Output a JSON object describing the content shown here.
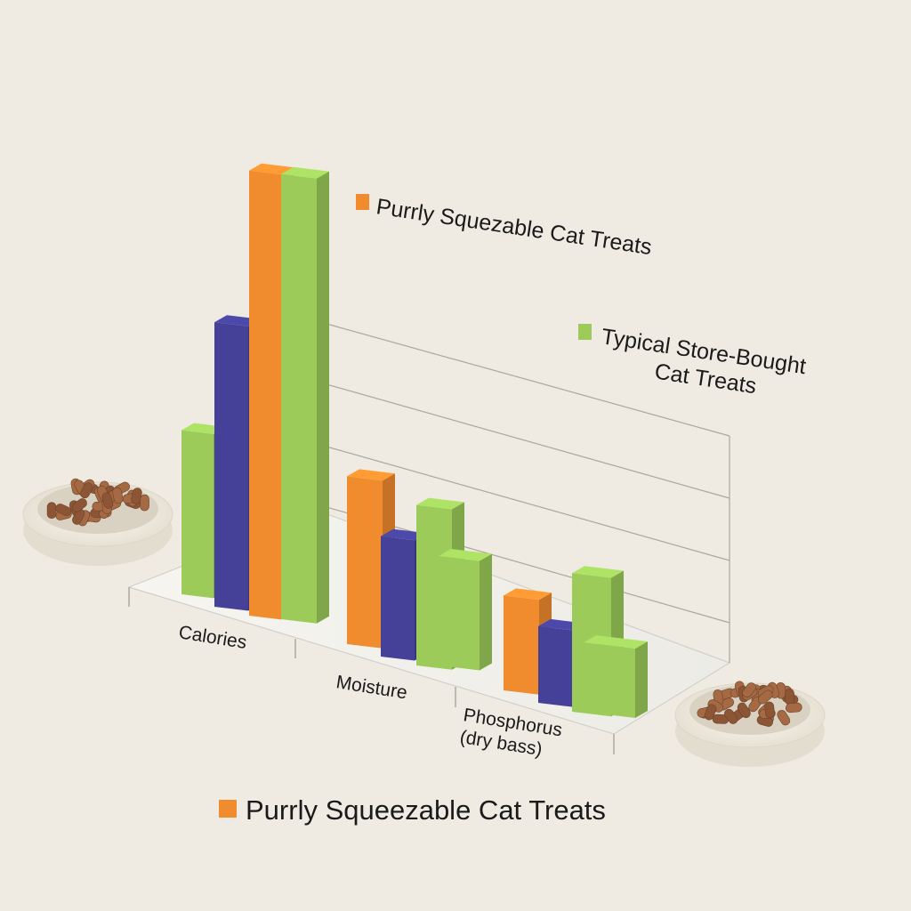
{
  "chart_data": {
    "type": "bar",
    "title": "",
    "xlabel": "",
    "ylabel": "",
    "categories": [
      "Calories",
      "Moisture",
      "Phosphorus\n(dry bass)"
    ],
    "series": [
      {
        "name": "Typical Store-Bought\nCat Treats",
        "color": "#9ccb5a",
        "values": [
          45,
          0,
          0
        ]
      },
      {
        "name": "",
        "color": "#454199",
        "values": [
          78,
          33,
          21
        ]
      },
      {
        "name": "Purrly Squezable Cat Treats",
        "color": "#f08b2e",
        "values": [
          122,
          46,
          26
        ]
      },
      {
        "name": "",
        "color": "#9ccb5a",
        "values": [
          122,
          44,
          38
        ]
      },
      {
        "name": "",
        "color": "#9ccb5a",
        "values": [
          0,
          30,
          19
        ]
      }
    ],
    "grid": true,
    "legend_position": "top-right"
  },
  "legend": {
    "items": [
      {
        "label": "Purrly Squezable Cat Treats",
        "color": "#f08b2e"
      },
      {
        "label": "Typical Store-Bought\nCat Treats",
        "color": "#9ccb5a"
      }
    ]
  },
  "bottom_legend": {
    "label": "Purrly Squeezable Cat Treats",
    "color": "#f08b2e"
  }
}
